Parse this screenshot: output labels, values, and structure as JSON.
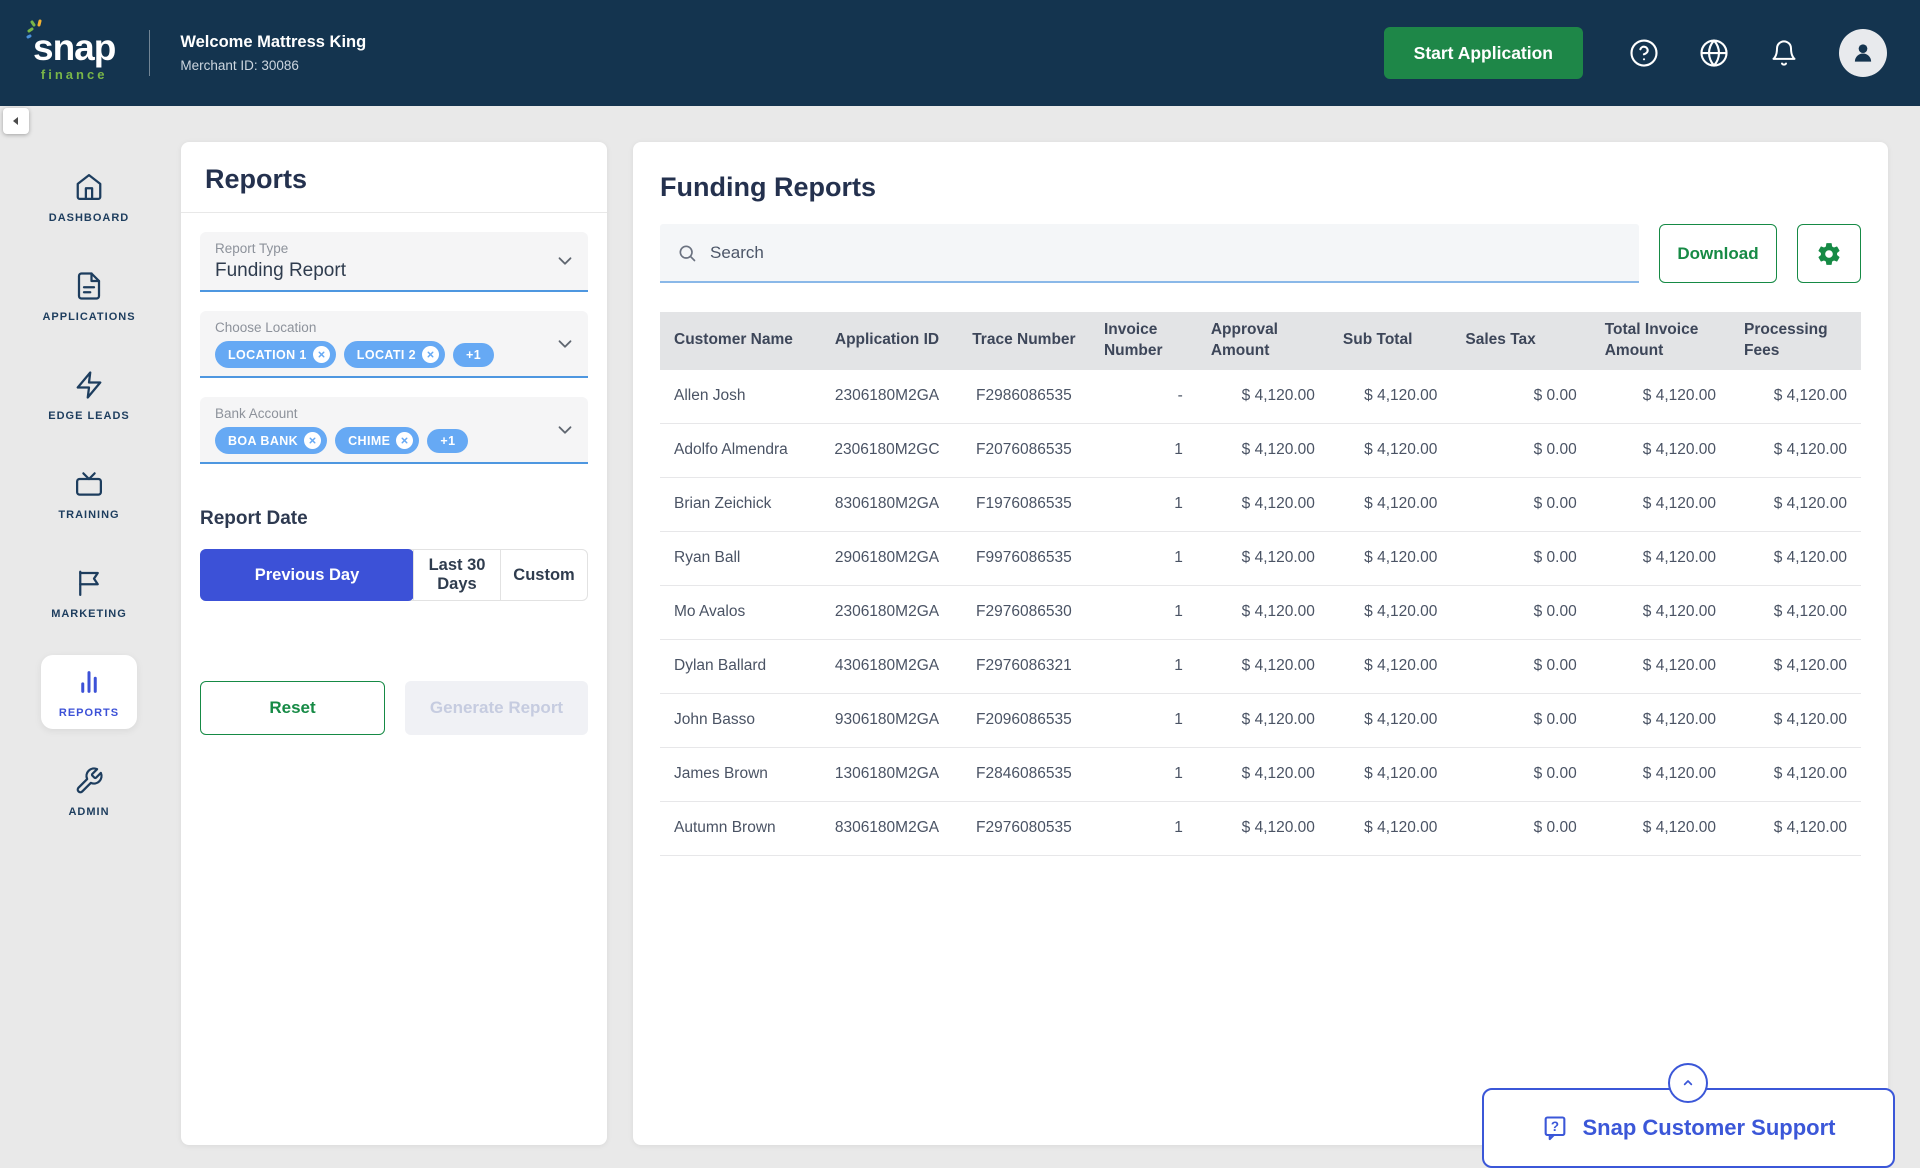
{
  "colors": {
    "navy": "#14344f",
    "brand_green": "#1e8748",
    "outline_green": "#168a45",
    "action_blue": "#3c51d7",
    "chip_blue": "#66a9f4",
    "support_blue": "#3b57d8",
    "field_blue": "#4e97e0"
  },
  "header": {
    "logo_text": "snap",
    "logo_sub": "finance",
    "welcome": "Welcome Mattress King",
    "merchant_id": "Merchant ID: 30086",
    "start_application": "Start Application"
  },
  "sidebar": {
    "items": [
      {
        "label": "DASHBOARD"
      },
      {
        "label": "APPLICATIONS"
      },
      {
        "label": "EDGE LEADS"
      },
      {
        "label": "TRAINING"
      },
      {
        "label": "MARKETING"
      },
      {
        "label": "REPORTS"
      },
      {
        "label": "ADMIN"
      }
    ],
    "active_item": "REPORTS"
  },
  "filters": {
    "title": "Reports",
    "report_type": {
      "label": "Report Type",
      "value": "Funding Report"
    },
    "location": {
      "label": "Choose Location",
      "chips": [
        "LOCATION 1",
        "LOCATI 2"
      ],
      "more": "+1"
    },
    "bank": {
      "label": "Bank Account",
      "chips": [
        "BOA BANK",
        "CHIME"
      ],
      "more": "+1"
    },
    "date_heading": "Report Date",
    "date_options": [
      "Previous Day",
      "Last 30 Days",
      "Custom"
    ],
    "selected_date_option": "Previous Day",
    "reset": "Reset",
    "generate": "Generate Report"
  },
  "main": {
    "title": "Funding Reports",
    "search_placeholder": "Search",
    "download": "Download",
    "table": {
      "columns": [
        "Customer Name",
        "Application ID",
        "Trace Number",
        "Invoice Number",
        "Approval Amount",
        "Sub Total",
        "Sales Tax",
        "Total Invoice Amount",
        "Processing Fees"
      ],
      "rows": [
        [
          "Allen Josh",
          "2306180M2GA",
          "F2986086535",
          "-",
          "$ 4,120.00",
          "$ 4,120.00",
          "$ 0.00",
          "$ 4,120.00",
          "$ 4,120.00"
        ],
        [
          "Adolfo Almendra",
          "2306180M2GC",
          "F2076086535",
          "1",
          "$ 4,120.00",
          "$ 4,120.00",
          "$ 0.00",
          "$ 4,120.00",
          "$ 4,120.00"
        ],
        [
          "Brian Zeichick",
          "8306180M2GA",
          "F1976086535",
          "1",
          "$ 4,120.00",
          "$ 4,120.00",
          "$ 0.00",
          "$ 4,120.00",
          "$ 4,120.00"
        ],
        [
          "Ryan Ball",
          "2906180M2GA",
          "F9976086535",
          "1",
          "$ 4,120.00",
          "$ 4,120.00",
          "$ 0.00",
          "$ 4,120.00",
          "$ 4,120.00"
        ],
        [
          "Mo Avalos",
          "2306180M2GA",
          "F2976086530",
          "1",
          "$ 4,120.00",
          "$ 4,120.00",
          "$ 0.00",
          "$ 4,120.00",
          "$ 4,120.00"
        ],
        [
          "Dylan Ballard",
          "4306180M2GA",
          "F2976086321",
          "1",
          "$ 4,120.00",
          "$ 4,120.00",
          "$ 0.00",
          "$ 4,120.00",
          "$ 4,120.00"
        ],
        [
          "John Basso",
          "9306180M2GA",
          "F2096086535",
          "1",
          "$ 4,120.00",
          "$ 4,120.00",
          "$ 0.00",
          "$ 4,120.00",
          "$ 4,120.00"
        ],
        [
          "James Brown",
          "1306180M2GA",
          "F2846086535",
          "1",
          "$ 4,120.00",
          "$ 4,120.00",
          "$ 0.00",
          "$ 4,120.00",
          "$ 4,120.00"
        ],
        [
          "Autumn Brown",
          "8306180M2GA",
          "F2976080535",
          "1",
          "$ 4,120.00",
          "$ 4,120.00",
          "$ 0.00",
          "$ 4,120.00",
          "$ 4,120.00"
        ]
      ]
    }
  },
  "support": {
    "label": "Snap Customer Support"
  }
}
